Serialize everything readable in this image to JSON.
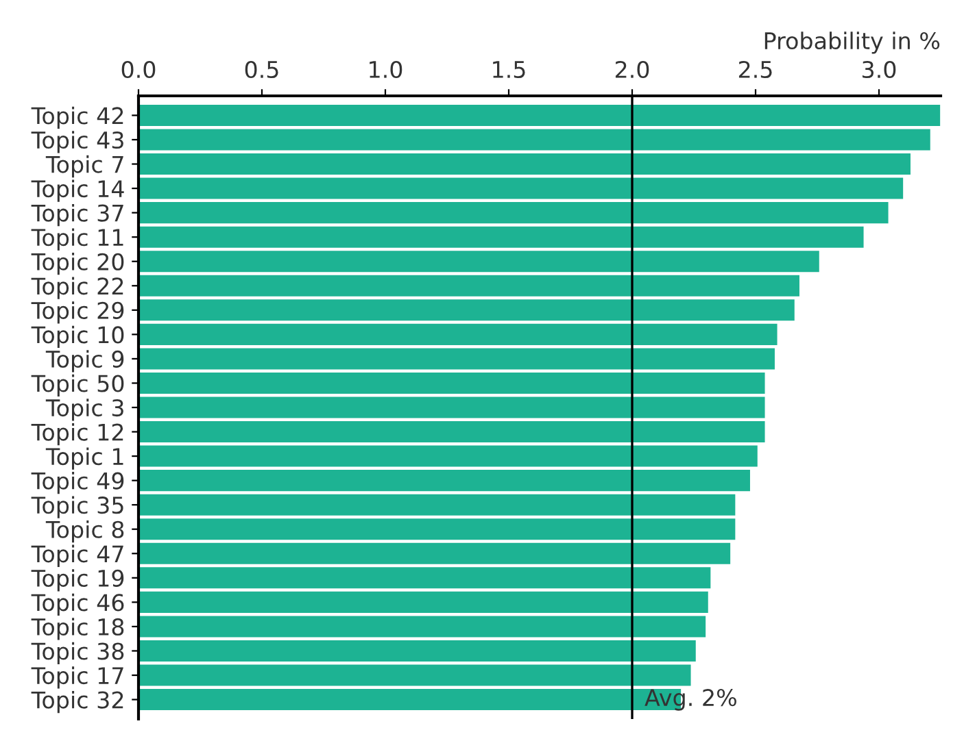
{
  "chart_data": {
    "type": "bar",
    "orientation": "horizontal",
    "xlabel": "Probability in %",
    "categories": [
      "Topic 42",
      "Topic 43",
      "Topic 7",
      "Topic 14",
      "Topic 37",
      "Topic 11",
      "Topic 20",
      "Topic 22",
      "Topic 29",
      "Topic 10",
      "Topic 9",
      "Topic 50",
      "Topic 3",
      "Topic 12",
      "Topic 1",
      "Topic 49",
      "Topic 35",
      "Topic 8",
      "Topic 47",
      "Topic 19",
      "Topic 46",
      "Topic 18",
      "Topic 38",
      "Topic 17",
      "Topic 32"
    ],
    "values": [
      3.25,
      3.21,
      3.13,
      3.1,
      3.04,
      2.94,
      2.76,
      2.68,
      2.66,
      2.59,
      2.58,
      2.54,
      2.54,
      2.54,
      2.51,
      2.48,
      2.42,
      2.42,
      2.4,
      2.32,
      2.31,
      2.3,
      2.26,
      2.24,
      2.2
    ],
    "color": "#1db393",
    "xlim": [
      0,
      3.25
    ],
    "xticks": [
      {
        "value": 0,
        "label": "0.0"
      },
      {
        "value": 0.5,
        "label": "0.5"
      },
      {
        "value": 1,
        "label": "1.0"
      },
      {
        "value": 1.5,
        "label": "1.5"
      },
      {
        "value": 2,
        "label": "2.0"
      },
      {
        "value": 2.5,
        "label": "2.5"
      },
      {
        "value": 3,
        "label": "3.0"
      }
    ],
    "ref_lines": [
      {
        "axis": "x",
        "value": 2,
        "label": "Avg. 2%",
        "color": "#000000"
      }
    ],
    "grid": false,
    "legend": false
  }
}
